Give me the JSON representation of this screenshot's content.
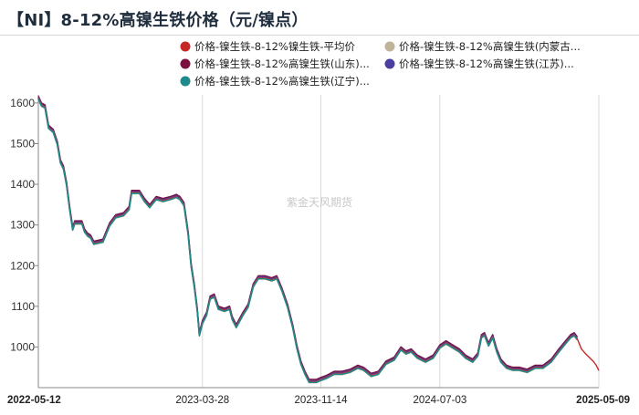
{
  "header": {
    "title": "【NI】8-12%高镍生铁价格（元/镍点）"
  },
  "watermark": "紫金天风期货",
  "colors": {
    "series": [
      "#c62828",
      "#bfb39a",
      "#7b1040",
      "#4a3f9f",
      "#1f8a8a"
    ],
    "grid": "#d9d9d9",
    "axis": "#888888"
  },
  "chart_data": {
    "type": "line",
    "title": "【NI】8-12%高镍生铁价格（元/镍点）",
    "xlabel": "",
    "ylabel": "",
    "x_range": [
      "2022-05-12",
      "2025-05-09"
    ],
    "ylim": [
      900,
      1620
    ],
    "y_ticks": [
      1000,
      1100,
      1200,
      1300,
      1400,
      1500,
      1600
    ],
    "x_ticks": [
      {
        "date": "2022-05-12",
        "label": "2022-05-12",
        "bold": true
      },
      {
        "date": "2023-03-28",
        "label": "2023-03-28",
        "bold": false
      },
      {
        "date": "2023-11-14",
        "label": "2023-11-14",
        "bold": false
      },
      {
        "date": "2024-07-03",
        "label": "2024-07-03",
        "bold": false
      },
      {
        "date": "2025-05-09",
        "label": "2025-05-09",
        "bold": true
      }
    ],
    "grid": "vertical",
    "legend_position": "top-right",
    "series": [
      {
        "name": "价格-镍生铁-8-12%镍生铁-平均价",
        "offset": 0,
        "tail": true
      },
      {
        "name": "价格-镍生铁-8-12%高镍生铁(内蒙古...",
        "offset": -3,
        "tail": false
      },
      {
        "name": "价格-镍生铁-8-12%高镍生铁(山东)...",
        "offset": 5,
        "tail": false
      },
      {
        "name": "价格-镍生铁-8-12%高镍生铁(江苏)...",
        "offset": 2,
        "tail": false
      },
      {
        "name": "价格-镍生铁-8-12%高镍生铁(辽宁)...",
        "offset": -2,
        "tail": false
      }
    ],
    "base_points": [
      [
        "2022-05-12",
        1612
      ],
      [
        "2022-05-18",
        1595
      ],
      [
        "2022-05-25",
        1590
      ],
      [
        "2022-06-01",
        1540
      ],
      [
        "2022-06-10",
        1530
      ],
      [
        "2022-06-18",
        1500
      ],
      [
        "2022-06-24",
        1455
      ],
      [
        "2022-06-30",
        1440
      ],
      [
        "2022-07-06",
        1400
      ],
      [
        "2022-07-12",
        1340
      ],
      [
        "2022-07-18",
        1290
      ],
      [
        "2022-07-22",
        1305
      ],
      [
        "2022-08-05",
        1305
      ],
      [
        "2022-08-10",
        1285
      ],
      [
        "2022-08-16",
        1275
      ],
      [
        "2022-08-22",
        1270
      ],
      [
        "2022-08-28",
        1255
      ],
      [
        "2022-09-15",
        1260
      ],
      [
        "2022-09-28",
        1300
      ],
      [
        "2022-10-10",
        1320
      ],
      [
        "2022-10-25",
        1325
      ],
      [
        "2022-11-05",
        1340
      ],
      [
        "2022-11-10",
        1380
      ],
      [
        "2022-11-25",
        1380
      ],
      [
        "2022-12-05",
        1360
      ],
      [
        "2022-12-15",
        1345
      ],
      [
        "2022-12-28",
        1365
      ],
      [
        "2023-01-10",
        1360
      ],
      [
        "2023-01-25",
        1365
      ],
      [
        "2023-02-05",
        1370
      ],
      [
        "2023-02-12",
        1365
      ],
      [
        "2023-02-20",
        1350
      ],
      [
        "2023-02-28",
        1280
      ],
      [
        "2023-03-06",
        1200
      ],
      [
        "2023-03-12",
        1150
      ],
      [
        "2023-03-18",
        1090
      ],
      [
        "2023-03-22",
        1030
      ],
      [
        "2023-03-28",
        1060
      ],
      [
        "2023-04-05",
        1080
      ],
      [
        "2023-04-12",
        1120
      ],
      [
        "2023-04-20",
        1125
      ],
      [
        "2023-04-28",
        1095
      ],
      [
        "2023-05-10",
        1090
      ],
      [
        "2023-05-20",
        1095
      ],
      [
        "2023-05-25",
        1070
      ],
      [
        "2023-06-02",
        1050
      ],
      [
        "2023-06-15",
        1080
      ],
      [
        "2023-06-25",
        1100
      ],
      [
        "2023-07-05",
        1150
      ],
      [
        "2023-07-15",
        1170
      ],
      [
        "2023-07-28",
        1170
      ],
      [
        "2023-08-10",
        1165
      ],
      [
        "2023-08-20",
        1170
      ],
      [
        "2023-08-30",
        1140
      ],
      [
        "2023-09-10",
        1100
      ],
      [
        "2023-09-20",
        1050
      ],
      [
        "2023-09-28",
        1000
      ],
      [
        "2023-10-06",
        960
      ],
      [
        "2023-10-14",
        935
      ],
      [
        "2023-10-22",
        915
      ],
      [
        "2023-11-05",
        915
      ],
      [
        "2023-11-14",
        920
      ],
      [
        "2023-11-25",
        925
      ],
      [
        "2023-12-10",
        935
      ],
      [
        "2023-12-25",
        935
      ],
      [
        "2024-01-10",
        940
      ],
      [
        "2024-01-25",
        950
      ],
      [
        "2024-02-05",
        945
      ],
      [
        "2024-02-20",
        930
      ],
      [
        "2024-03-05",
        935
      ],
      [
        "2024-03-20",
        960
      ],
      [
        "2024-04-05",
        970
      ],
      [
        "2024-04-18",
        995
      ],
      [
        "2024-04-28",
        985
      ],
      [
        "2024-05-08",
        990
      ],
      [
        "2024-05-20",
        975
      ],
      [
        "2024-06-05",
        965
      ],
      [
        "2024-06-20",
        975
      ],
      [
        "2024-07-03",
        1000
      ],
      [
        "2024-07-15",
        1010
      ],
      [
        "2024-07-28",
        1000
      ],
      [
        "2024-08-10",
        990
      ],
      [
        "2024-08-22",
        975
      ],
      [
        "2024-09-05",
        965
      ],
      [
        "2024-09-15",
        980
      ],
      [
        "2024-09-22",
        1025
      ],
      [
        "2024-09-28",
        1030
      ],
      [
        "2024-10-06",
        1005
      ],
      [
        "2024-10-14",
        1025
      ],
      [
        "2024-10-22",
        990
      ],
      [
        "2024-10-30",
        965
      ],
      [
        "2024-11-10",
        950
      ],
      [
        "2024-11-22",
        945
      ],
      [
        "2024-12-05",
        945
      ],
      [
        "2024-12-20",
        940
      ],
      [
        "2025-01-05",
        950
      ],
      [
        "2025-01-20",
        950
      ],
      [
        "2025-02-05",
        965
      ],
      [
        "2025-02-20",
        990
      ],
      [
        "2025-03-05",
        1010
      ],
      [
        "2025-03-15",
        1025
      ],
      [
        "2025-03-22",
        1030
      ],
      [
        "2025-03-28",
        1020
      ]
    ],
    "tail_points": [
      [
        "2025-03-28",
        1020
      ],
      [
        "2025-04-05",
        995
      ],
      [
        "2025-04-12",
        985
      ],
      [
        "2025-04-20",
        975
      ],
      [
        "2025-04-28",
        965
      ],
      [
        "2025-05-04",
        955
      ],
      [
        "2025-05-09",
        942
      ]
    ]
  }
}
